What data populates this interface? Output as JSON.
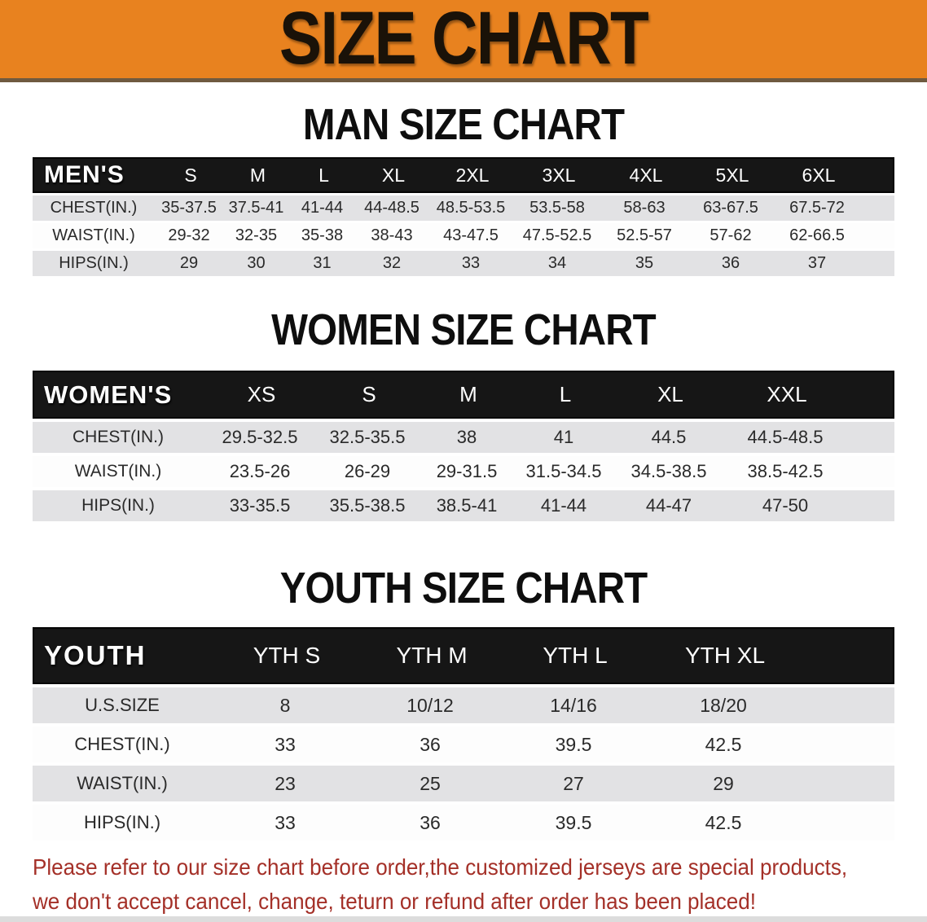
{
  "banner": {
    "title": "SIZE CHART",
    "bg_color": "#e8821f",
    "text_color": "#1a1208"
  },
  "sections": [
    {
      "title": "MAN SIZE CHART",
      "header_label": "MEN'S",
      "columns": [
        "S",
        "M",
        "L",
        "XL",
        "2XL",
        "3XL",
        "4XL",
        "5XL",
        "6XL"
      ],
      "rows": [
        {
          "label": "CHEST(IN.)",
          "values": [
            "35-37.5",
            "37.5-41",
            "41-44",
            "44-48.5",
            "48.5-53.5",
            "53.5-58",
            "58-63",
            "63-67.5",
            "67.5-72"
          ]
        },
        {
          "label": "WAIST(IN.)",
          "values": [
            "29-32",
            "32-35",
            "35-38",
            "38-43",
            "43-47.5",
            "47.5-52.5",
            "52.5-57",
            "57-62",
            "62-66.5"
          ]
        },
        {
          "label": "HIPS(IN.)",
          "values": [
            "29",
            "30",
            "31",
            "32",
            "33",
            "34",
            "35",
            "36",
            "37"
          ]
        }
      ]
    },
    {
      "title": "WOMEN SIZE CHART",
      "header_label": "WOMEN'S",
      "columns": [
        "XS",
        "S",
        "M",
        "L",
        "XL",
        "XXL"
      ],
      "rows": [
        {
          "label": "CHEST(IN.)",
          "values": [
            "29.5-32.5",
            "32.5-35.5",
            "38",
            "41",
            "44.5",
            "44.5-48.5"
          ]
        },
        {
          "label": "WAIST(IN.)",
          "values": [
            "23.5-26",
            "26-29",
            "29-31.5",
            "31.5-34.5",
            "34.5-38.5",
            "38.5-42.5"
          ]
        },
        {
          "label": "HIPS(IN.)",
          "values": [
            "33-35.5",
            "35.5-38.5",
            "38.5-41",
            "41-44",
            "44-47",
            "47-50"
          ]
        }
      ]
    },
    {
      "title": "YOUTH SIZE CHART",
      "header_label": "YOUTH",
      "columns": [
        "YTH S",
        "YTH M",
        "YTH L",
        "YTH XL"
      ],
      "rows": [
        {
          "label": "U.S.SIZE",
          "values": [
            "8",
            "10/12",
            "14/16",
            "18/20"
          ]
        },
        {
          "label": "CHEST(IN.)",
          "values": [
            "33",
            "36",
            "39.5",
            "42.5"
          ]
        },
        {
          "label": "WAIST(IN.)",
          "values": [
            "23",
            "25",
            "27",
            "29"
          ]
        },
        {
          "label": "HIPS(IN.)",
          "values": [
            "33",
            "36",
            "39.5",
            "42.5"
          ]
        }
      ]
    }
  ],
  "disclaimer": {
    "line1": "Please refer to our size chart before order,the customized jerseys are special products,",
    "line2": "we don't accept cancel, change, teturn or refund after order has been placed!",
    "color": "#a43028"
  }
}
